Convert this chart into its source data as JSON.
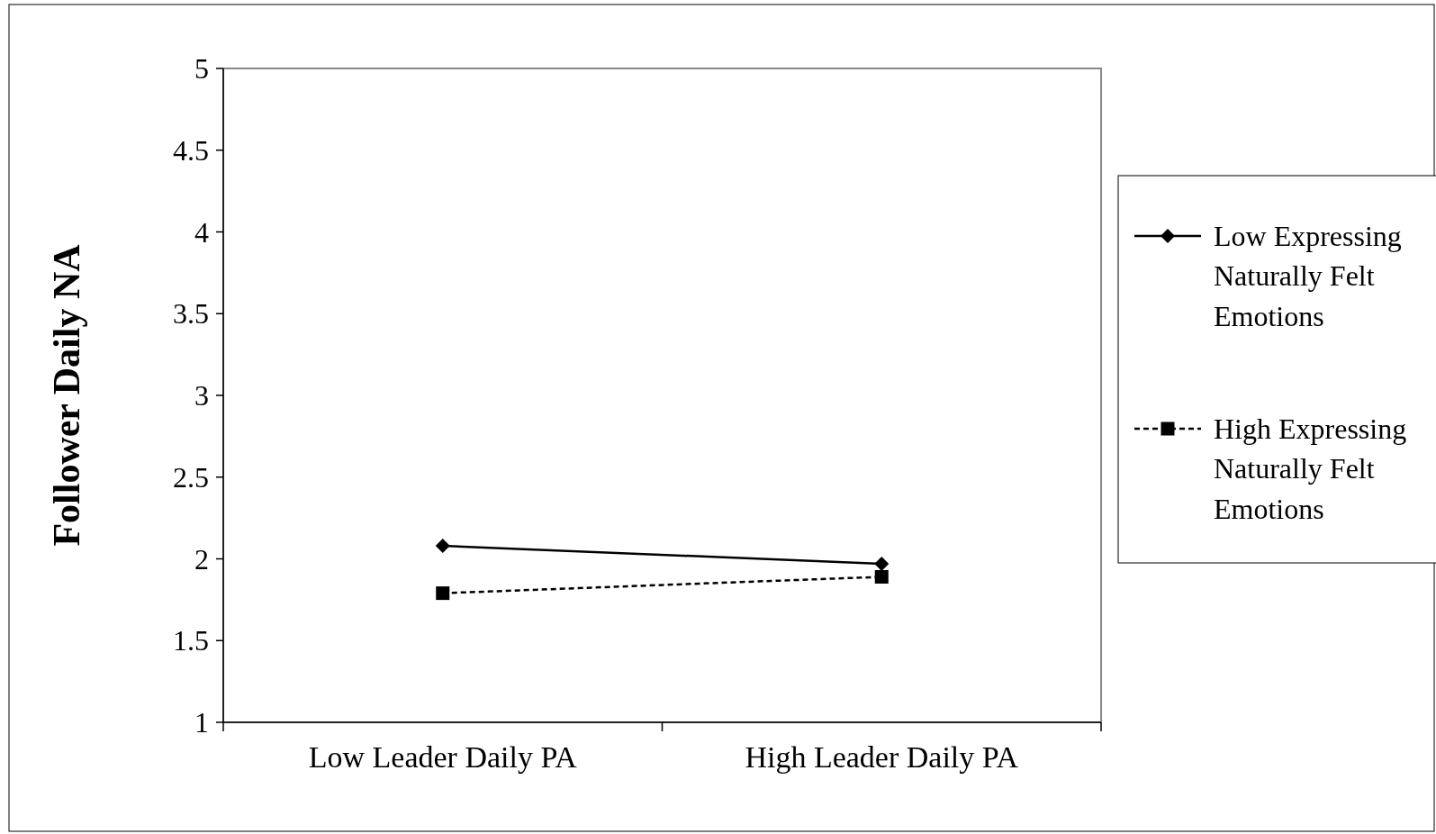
{
  "chart_data": {
    "type": "line",
    "ylabel": "Follower Daily NA",
    "categories": [
      "Low Leader Daily PA",
      "High Leader Daily PA"
    ],
    "series": [
      {
        "name": "Low Expressing Naturally Felt Emotions",
        "color": "#000000",
        "values": [
          2.08,
          1.97
        ],
        "marker": "diamond",
        "line_style": "solid"
      },
      {
        "name": "High Expressing Naturally Felt Emotions",
        "color": "#000000",
        "values": [
          1.79,
          1.89
        ],
        "marker": "square",
        "line_style": "dashed"
      }
    ],
    "ylim": [
      1,
      5
    ],
    "yticks": [
      1,
      1.5,
      2,
      2.5,
      3,
      3.5,
      4,
      4.5,
      5
    ],
    "grid": false,
    "legend": "right"
  }
}
